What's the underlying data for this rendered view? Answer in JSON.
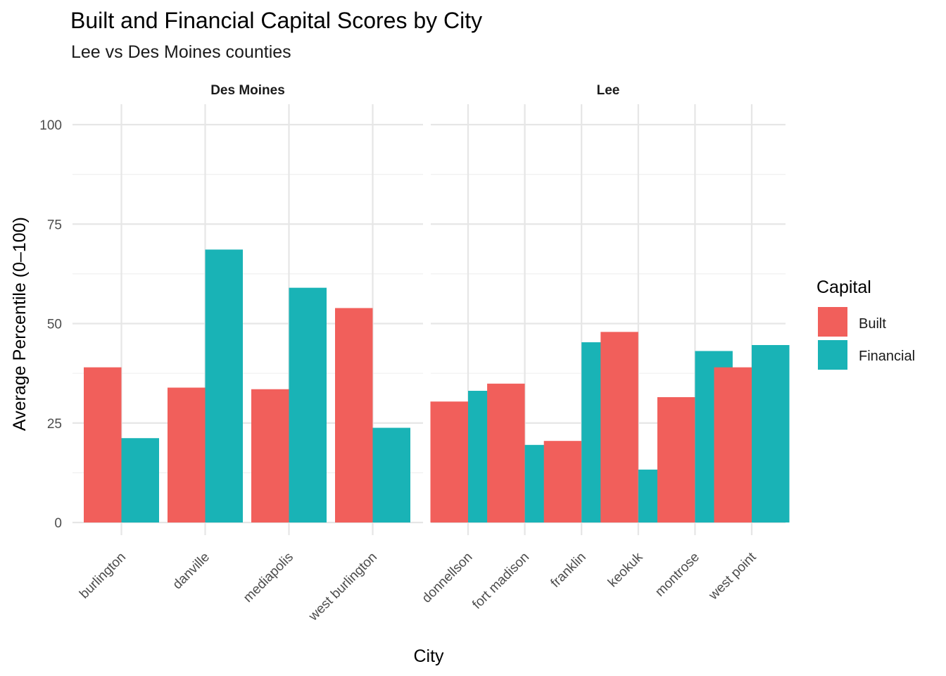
{
  "chart_data": {
    "type": "bar",
    "title": "Built and Financial Capital Scores by City",
    "subtitle": "Lee vs Des Moines counties",
    "xlabel": "City",
    "ylabel": "Average Percentile (0–100)",
    "ylim": [
      0,
      100
    ],
    "yticks": [
      "0",
      "25",
      "50",
      "75",
      "100"
    ],
    "legend": {
      "title": "Capital",
      "position": "right",
      "items": [
        {
          "label": "Built",
          "color": "#F15F5B"
        },
        {
          "label": "Financial",
          "color": "#19B3B6"
        }
      ]
    },
    "panels": [
      {
        "name": "Des Moines",
        "categories": [
          "burlington",
          "danville",
          "mediapolis",
          "west burlington"
        ],
        "series": [
          {
            "name": "Built",
            "values": [
              39.0,
              33.9,
              33.5,
              53.9
            ]
          },
          {
            "name": "Financial",
            "values": [
              21.2,
              68.6,
              59.0,
              23.8
            ]
          }
        ]
      },
      {
        "name": "Lee",
        "categories": [
          "donnellson",
          "fort madison",
          "franklin",
          "keokuk",
          "montrose",
          "west point"
        ],
        "series": [
          {
            "name": "Built",
            "values": [
              30.4,
              34.9,
              20.5,
              47.9,
              31.5,
              39.0
            ]
          },
          {
            "name": "Financial",
            "values": [
              33.1,
              19.5,
              45.3,
              13.3,
              43.1,
              44.6
            ]
          }
        ]
      }
    ]
  }
}
